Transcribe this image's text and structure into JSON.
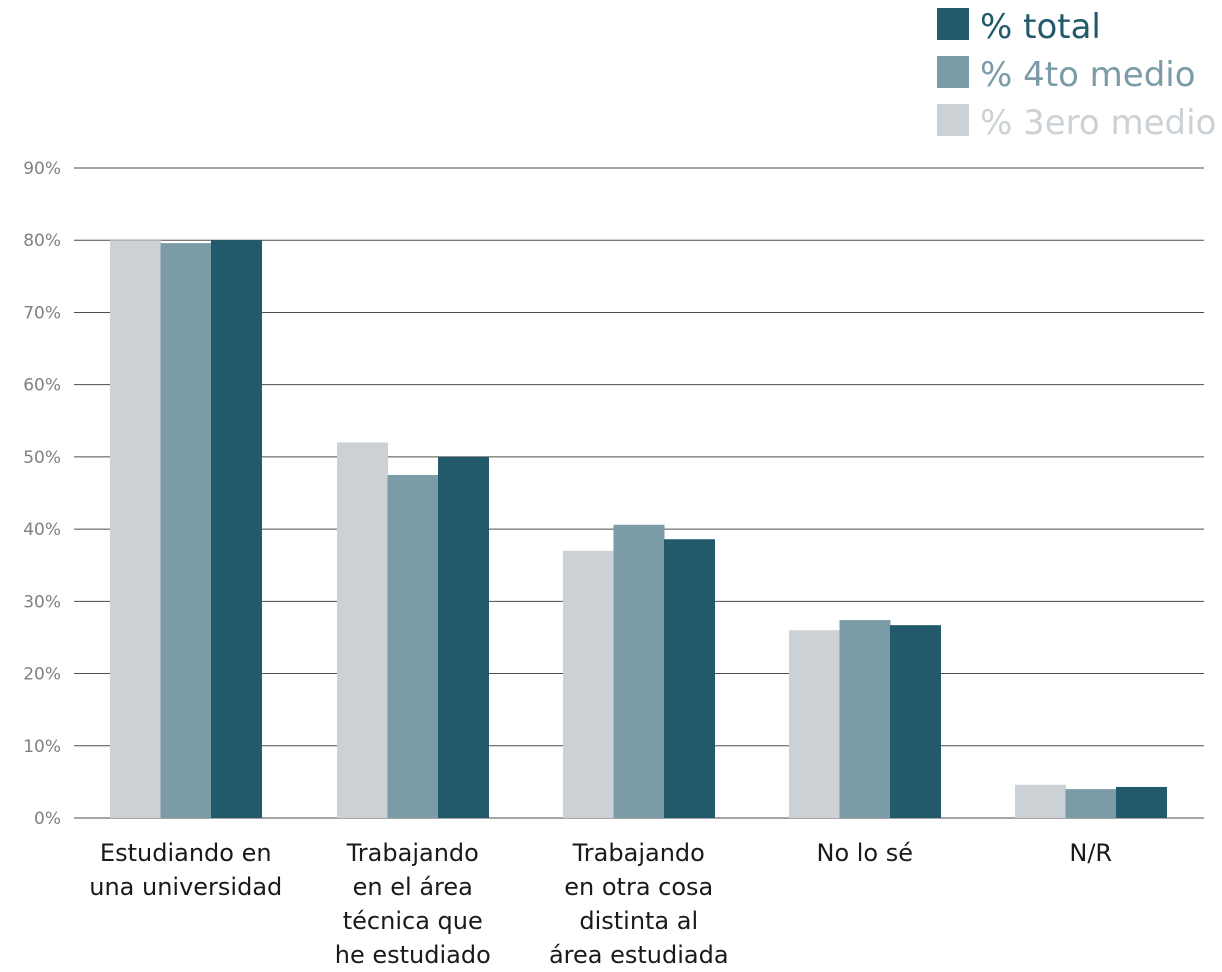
{
  "chart_data": {
    "type": "bar",
    "categories": [
      [
        "Estudiando en",
        "una universidad"
      ],
      [
        "Trabajando",
        "en el área",
        "técnica que",
        "he estudiado"
      ],
      [
        "Trabajando",
        "en otra cosa",
        "distinta al",
        "área estudiada"
      ],
      [
        "No lo sé"
      ],
      [
        "N/R"
      ]
    ],
    "series": [
      {
        "name": "% 3ero medio",
        "color": "#cbd1d5",
        "values": [
          80,
          52,
          37,
          26,
          4.6
        ]
      },
      {
        "name": "% 4to medio",
        "color": "#7b9ba7",
        "values": [
          79.6,
          47.5,
          40.6,
          27.4,
          4.0
        ]
      },
      {
        "name": "% total",
        "color": "#235a6b",
        "values": [
          80,
          50,
          38.6,
          26.7,
          4.3
        ]
      }
    ],
    "legend_order": [
      "% total",
      "% 4to medio",
      "% 3ero medio"
    ],
    "legend_placement": "top-right",
    "yticks": [
      "0%",
      "10%",
      "20%",
      "30%",
      "40%",
      "50%",
      "60%",
      "70%",
      "80%",
      "90%"
    ],
    "ylim": [
      0,
      90
    ],
    "grid": true
  }
}
